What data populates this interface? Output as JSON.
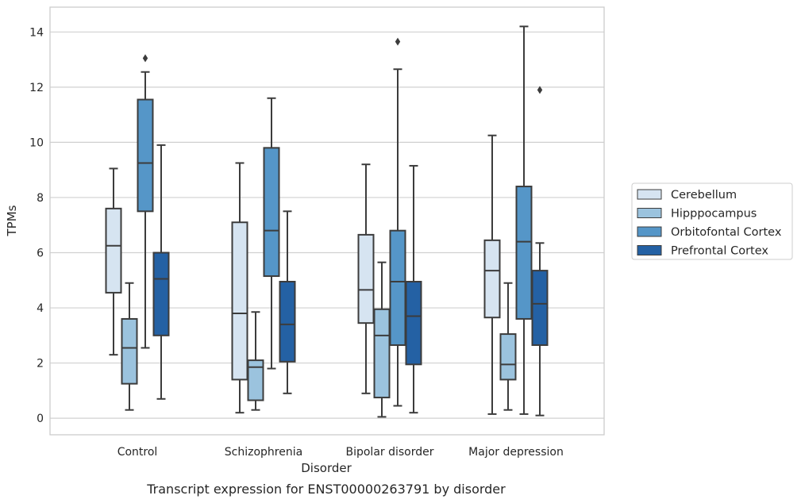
{
  "chart_data": {
    "type": "box",
    "xlabel": "Disorder",
    "ylabel": "TPMs",
    "caption": "Transcript expression for ENST00000263791 by disorder",
    "ylim": [
      -0.6,
      14.9
    ],
    "yticks": [
      0,
      2,
      4,
      6,
      8,
      10,
      12,
      14
    ],
    "grid": true,
    "legend_position": "right",
    "categories": [
      "Control",
      "Schizophrenia",
      "Bipolar disorder",
      "Major depression"
    ],
    "series": [
      {
        "name": "Cerebellum",
        "color": "#d6e4f1",
        "boxes": [
          {
            "whislo": 2.3,
            "q1": 4.55,
            "med": 6.25,
            "q3": 7.6,
            "whishi": 9.05,
            "fliers": []
          },
          {
            "whislo": 0.2,
            "q1": 1.4,
            "med": 3.8,
            "q3": 7.1,
            "whishi": 9.25,
            "fliers": []
          },
          {
            "whislo": 0.9,
            "q1": 3.45,
            "med": 4.65,
            "q3": 6.65,
            "whishi": 9.2,
            "fliers": []
          },
          {
            "whislo": 0.15,
            "q1": 3.65,
            "med": 5.35,
            "q3": 6.45,
            "whishi": 10.25,
            "fliers": []
          }
        ]
      },
      {
        "name": "Hipppocampus",
        "color": "#9bc3de",
        "boxes": [
          {
            "whislo": 0.3,
            "q1": 1.25,
            "med": 2.55,
            "q3": 3.6,
            "whishi": 4.9,
            "fliers": []
          },
          {
            "whislo": 0.3,
            "q1": 0.65,
            "med": 1.85,
            "q3": 2.1,
            "whishi": 3.85,
            "fliers": []
          },
          {
            "whislo": 0.05,
            "q1": 0.75,
            "med": 3.0,
            "q3": 3.95,
            "whishi": 5.65,
            "fliers": []
          },
          {
            "whislo": 0.3,
            "q1": 1.4,
            "med": 1.95,
            "q3": 3.05,
            "whishi": 4.9,
            "fliers": []
          }
        ]
      },
      {
        "name": "Orbitofontal Cortex",
        "color": "#5596c8",
        "boxes": [
          {
            "whislo": 2.55,
            "q1": 7.5,
            "med": 9.25,
            "q3": 11.55,
            "whishi": 12.55,
            "fliers": [
              13.05
            ]
          },
          {
            "whislo": 1.8,
            "q1": 5.15,
            "med": 6.8,
            "q3": 9.8,
            "whishi": 11.6,
            "fliers": []
          },
          {
            "whislo": 0.45,
            "q1": 2.65,
            "med": 4.95,
            "q3": 6.8,
            "whishi": 12.65,
            "fliers": [
              13.65
            ]
          },
          {
            "whislo": 0.15,
            "q1": 3.6,
            "med": 6.4,
            "q3": 8.4,
            "whishi": 14.2,
            "fliers": []
          }
        ]
      },
      {
        "name": "Prefrontal Cortex",
        "color": "#2461a4",
        "boxes": [
          {
            "whislo": 0.7,
            "q1": 3.0,
            "med": 5.05,
            "q3": 6.0,
            "whishi": 9.9,
            "fliers": []
          },
          {
            "whislo": 0.9,
            "q1": 2.05,
            "med": 3.4,
            "q3": 4.95,
            "whishi": 7.5,
            "fliers": []
          },
          {
            "whislo": 0.2,
            "q1": 1.95,
            "med": 3.7,
            "q3": 4.95,
            "whishi": 9.15,
            "fliers": []
          },
          {
            "whislo": 0.1,
            "q1": 2.65,
            "med": 4.15,
            "q3": 5.35,
            "whishi": 6.35,
            "fliers": [
              11.9
            ]
          }
        ]
      }
    ]
  }
}
